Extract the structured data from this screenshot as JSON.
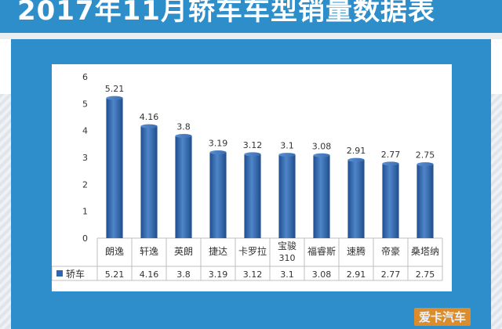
{
  "page": {
    "title": "2017年11月轿车车型销量数据表",
    "logo_text": "爱卡汽车"
  },
  "colors": {
    "banner": "#2e8ec9",
    "panel": "#2d8ecb",
    "bar": "#2f67ae",
    "grid": "#d9d9d9"
  },
  "chart_data": {
    "type": "bar",
    "categories": [
      "朗逸",
      "轩逸",
      "英朗",
      "捷达",
      "卡罗拉",
      "宝骏310",
      "福睿斯",
      "速腾",
      "帝豪",
      "桑塔纳"
    ],
    "category_lines": [
      [
        "朗逸"
      ],
      [
        "轩逸"
      ],
      [
        "英朗"
      ],
      [
        "捷达"
      ],
      [
        "卡罗拉"
      ],
      [
        "宝骏",
        "310"
      ],
      [
        "福睿斯"
      ],
      [
        "速腾"
      ],
      [
        "帝豪"
      ],
      [
        "桑塔纳"
      ]
    ],
    "series": [
      {
        "name": "轿车",
        "values": [
          5.21,
          4.16,
          3.8,
          3.19,
          3.12,
          3.1,
          3.08,
          2.91,
          2.77,
          2.75
        ]
      }
    ],
    "y_ticks": [
      0,
      1,
      2,
      3,
      4,
      5,
      6
    ],
    "ylim": [
      0,
      6
    ],
    "grid": false,
    "data_labels": true,
    "data_table": true
  }
}
